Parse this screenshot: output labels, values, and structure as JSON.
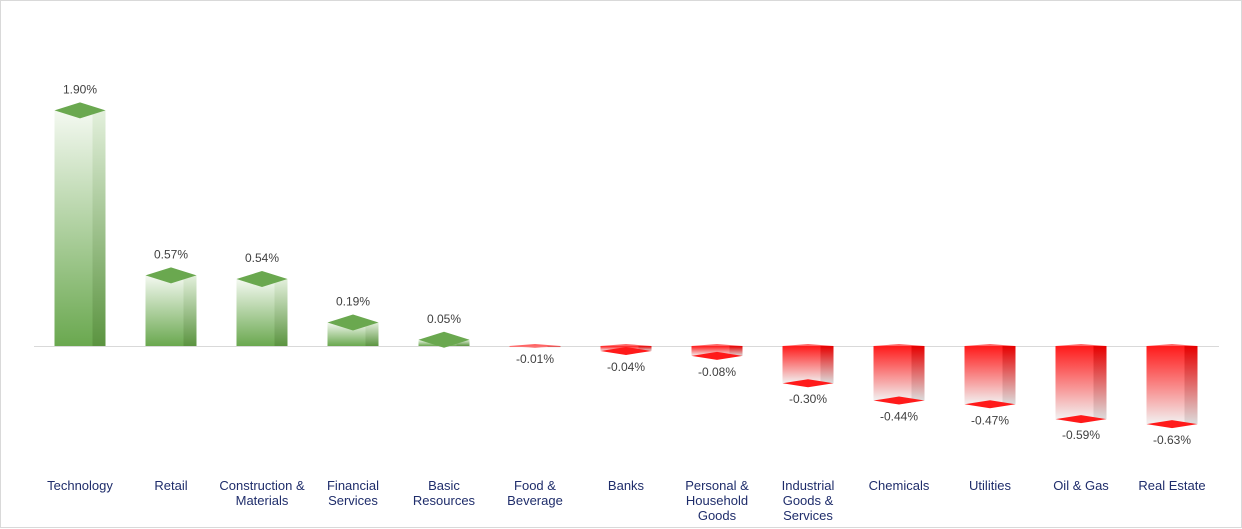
{
  "chart_data": {
    "type": "bar",
    "title": "",
    "xlabel": "",
    "ylabel": "",
    "unit": "%",
    "ylim": [
      -0.63,
      1.9
    ],
    "grid": false,
    "legend": "none",
    "style": "3d-column",
    "categories": [
      [
        "Technology"
      ],
      [
        "Retail"
      ],
      [
        "Construction &",
        "Materials"
      ],
      [
        "Financial",
        "Services"
      ],
      [
        "Basic",
        "Resources"
      ],
      [
        "Food &",
        "Beverage"
      ],
      [
        "Banks"
      ],
      [
        "Personal &",
        "Household",
        "Goods"
      ],
      [
        "Industrial",
        "Goods &",
        "Services"
      ],
      [
        "Chemicals"
      ],
      [
        "Utilities"
      ],
      [
        "Oil & Gas"
      ],
      [
        "Real Estate"
      ]
    ],
    "values": [
      1.9,
      0.57,
      0.54,
      0.19,
      0.05,
      -0.01,
      -0.04,
      -0.08,
      -0.3,
      -0.44,
      -0.47,
      -0.59,
      -0.63
    ],
    "data_labels": [
      "1.90%",
      "0.57%",
      "0.54%",
      "0.19%",
      "0.05%",
      "-0.01%",
      "-0.04%",
      "-0.08%",
      "-0.30%",
      "-0.44%",
      "-0.47%",
      "-0.59%",
      "-0.63%"
    ],
    "colors": {
      "positive_dark": "#6aa84f",
      "positive_light": "#f4f9f1",
      "negative_dark": "#ff1a1a",
      "negative_light": "#f2f2f2",
      "axis": "#d9d9d9",
      "category_text": "#1f2d6b",
      "value_text": "#404040"
    }
  }
}
